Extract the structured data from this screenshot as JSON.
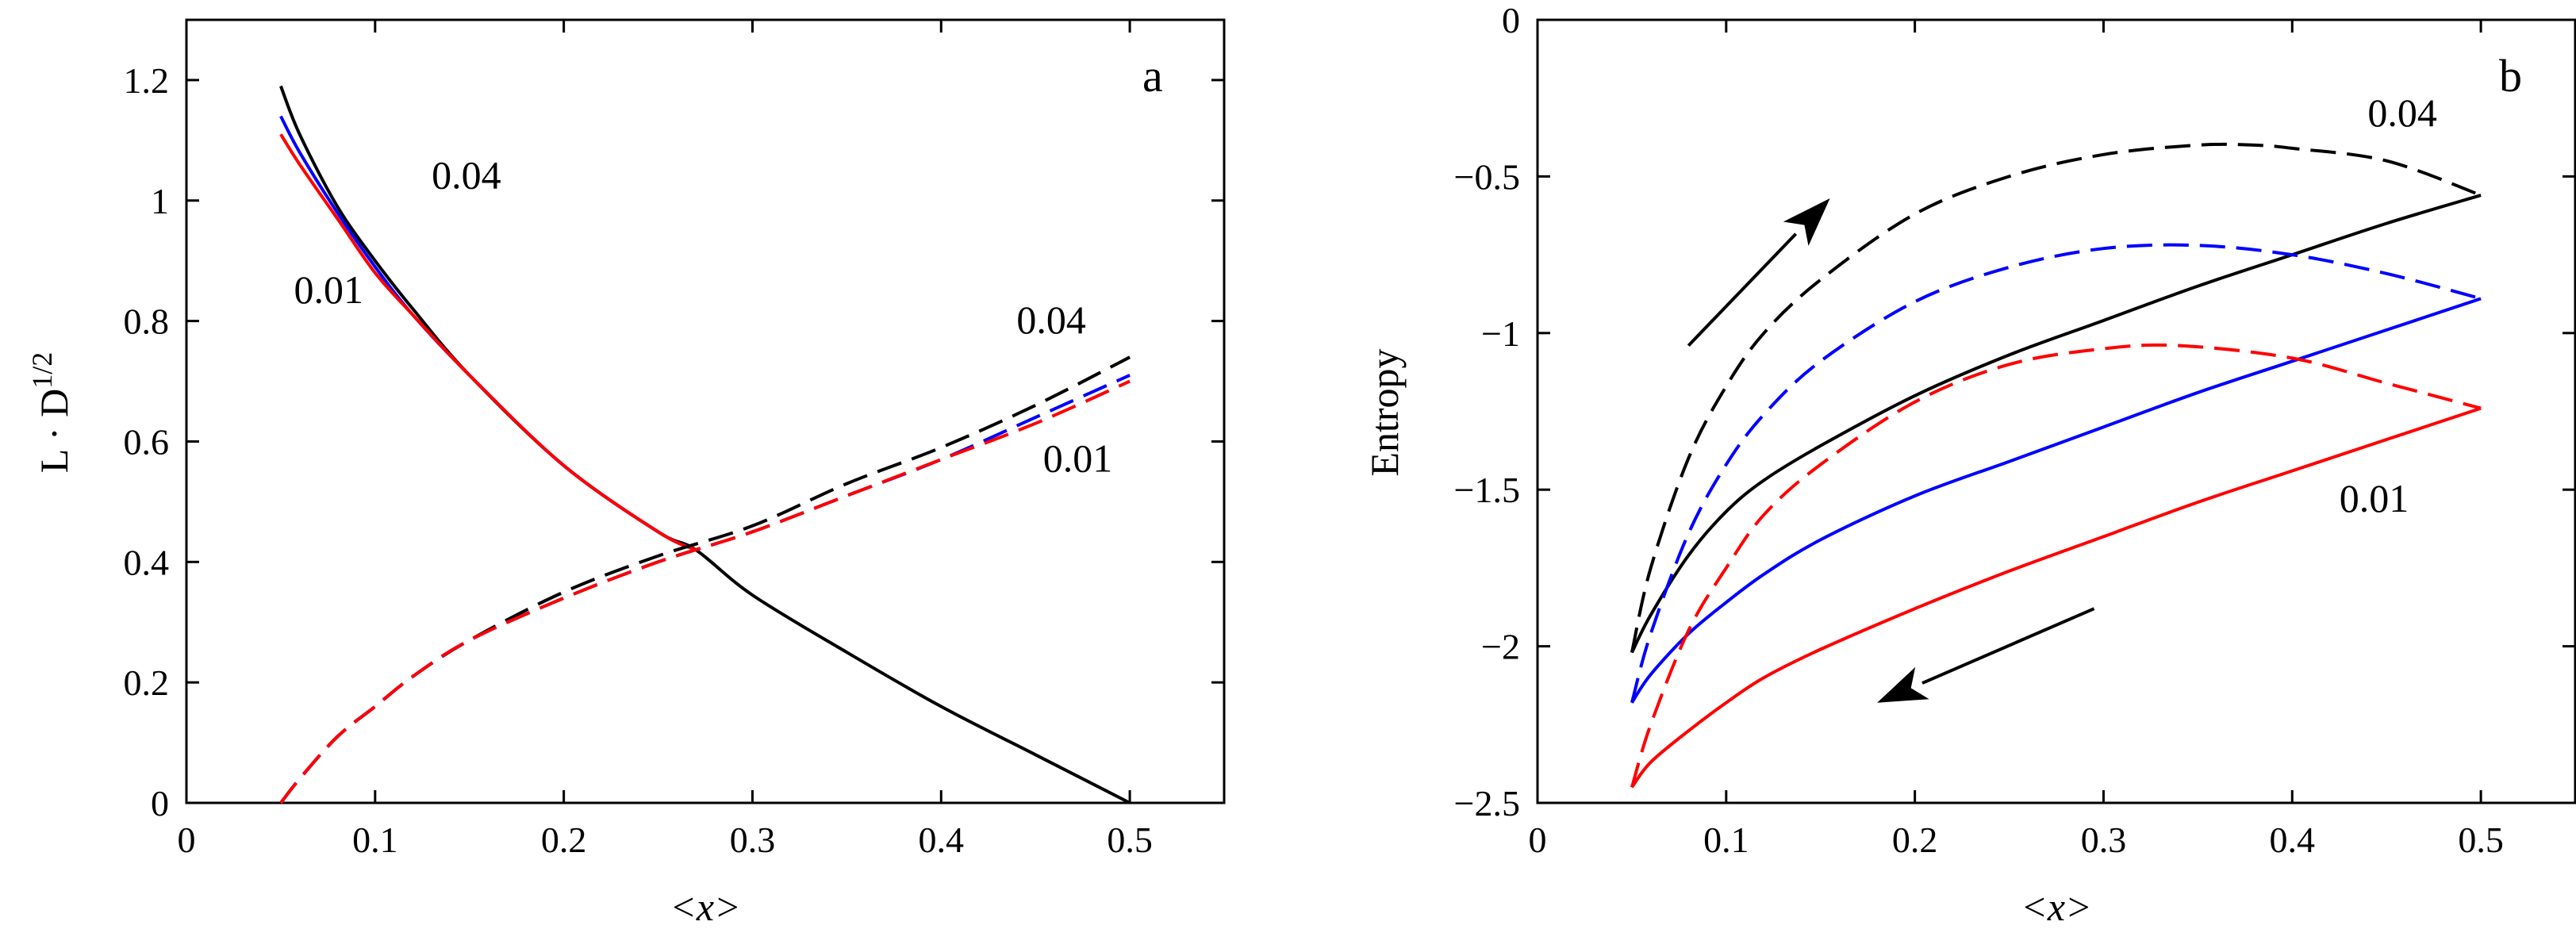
{
  "chart_data": [
    {
      "type": "line",
      "panel_label": "a",
      "xlabel": "<x>",
      "ylabel_main": "L · D",
      "ylabel_sup": "1/2",
      "xlim": [
        0,
        0.55
      ],
      "ylim": [
        0,
        1.3
      ],
      "xticks": [
        0,
        0.1,
        0.2,
        0.3,
        0.4,
        0.5
      ],
      "xtick_labels": [
        "0",
        "0.1",
        "0.2",
        "0.3",
        "0.4",
        "0.5"
      ],
      "yticks": [
        0,
        0.2,
        0.4,
        0.6,
        0.8,
        1,
        1.2
      ],
      "ytick_labels": [
        "0",
        "0.2",
        "0.4",
        "0.6",
        "0.8",
        "1",
        "1.2"
      ],
      "grid": false,
      "series": [
        {
          "color": "#000000",
          "style": "solid",
          "x": [
            0.05,
            0.06,
            0.08,
            0.1,
            0.12,
            0.15,
            0.2,
            0.25,
            0.27,
            0.3,
            0.35,
            0.4,
            0.45,
            0.5
          ],
          "y": [
            1.19,
            1.11,
            0.99,
            0.9,
            0.82,
            0.71,
            0.56,
            0.45,
            0.42,
            0.345,
            0.25,
            0.16,
            0.08,
            0.0
          ]
        },
        {
          "color": "#0000ff",
          "style": "solid",
          "x": [
            0.05,
            0.06,
            0.08,
            0.1,
            0.12,
            0.15,
            0.2,
            0.25,
            0.27
          ],
          "y": [
            1.14,
            1.08,
            0.98,
            0.89,
            0.81,
            0.71,
            0.56,
            0.45,
            0.42
          ]
        },
        {
          "color": "#ff0000",
          "style": "solid",
          "x": [
            0.05,
            0.06,
            0.08,
            0.1,
            0.12,
            0.15,
            0.2,
            0.25,
            0.27
          ],
          "y": [
            1.11,
            1.06,
            0.97,
            0.88,
            0.81,
            0.71,
            0.56,
            0.45,
            0.42
          ]
        },
        {
          "color": "#000000",
          "style": "dashed",
          "x": [
            0.05,
            0.06,
            0.08,
            0.1,
            0.12,
            0.15,
            0.2,
            0.25,
            0.3,
            0.35,
            0.4,
            0.45,
            0.5
          ],
          "y": [
            0.0,
            0.04,
            0.11,
            0.16,
            0.21,
            0.27,
            0.35,
            0.41,
            0.46,
            0.53,
            0.59,
            0.66,
            0.74
          ]
        },
        {
          "color": "#0000ff",
          "style": "dashed",
          "x": [
            0.05,
            0.06,
            0.08,
            0.1,
            0.12,
            0.15,
            0.2,
            0.25,
            0.3,
            0.35,
            0.4,
            0.45,
            0.5
          ],
          "y": [
            0.0,
            0.04,
            0.11,
            0.16,
            0.21,
            0.27,
            0.34,
            0.4,
            0.45,
            0.51,
            0.57,
            0.64,
            0.71
          ]
        },
        {
          "color": "#ff0000",
          "style": "dashed",
          "x": [
            0.05,
            0.06,
            0.08,
            0.1,
            0.12,
            0.15,
            0.2,
            0.25,
            0.3,
            0.35,
            0.4,
            0.45,
            0.5
          ],
          "y": [
            0.0,
            0.04,
            0.11,
            0.16,
            0.21,
            0.27,
            0.34,
            0.4,
            0.45,
            0.51,
            0.57,
            0.63,
            0.7
          ]
        }
      ],
      "annotations": [
        {
          "text": "0.04",
          "x": 0.13,
          "y": 1.02
        },
        {
          "text": "0.01",
          "x": 0.057,
          "y": 0.83
        },
        {
          "text": "0.04",
          "x": 0.44,
          "y": 0.78
        },
        {
          "text": "0.01",
          "x": 0.454,
          "y": 0.55
        }
      ]
    },
    {
      "type": "line",
      "panel_label": "b",
      "xlabel": "<x>",
      "ylabel": "Entropy",
      "xlim": [
        0,
        0.55
      ],
      "ylim": [
        -2.5,
        0
      ],
      "xticks": [
        0,
        0.1,
        0.2,
        0.3,
        0.4,
        0.5
      ],
      "xtick_labels": [
        "0",
        "0.1",
        "0.2",
        "0.3",
        "0.4",
        "0.5"
      ],
      "yticks": [
        -2.5,
        -2,
        -1.5,
        -1,
        -0.5,
        0
      ],
      "ytick_labels": [
        "−2.5",
        "−2",
        "−1.5",
        "−1",
        "−0.5",
        "0"
      ],
      "grid": false,
      "series": [
        {
          "color": "#000000",
          "style": "solid",
          "x": [
            0.05,
            0.06,
            0.08,
            0.1,
            0.12,
            0.15,
            0.2,
            0.25,
            0.3,
            0.35,
            0.4,
            0.45,
            0.5
          ],
          "y": [
            -2.02,
            -1.9,
            -1.71,
            -1.57,
            -1.47,
            -1.36,
            -1.2,
            -1.07,
            -0.96,
            -0.85,
            -0.75,
            -0.65,
            -0.56
          ]
        },
        {
          "color": "#0000ff",
          "style": "solid",
          "x": [
            0.05,
            0.06,
            0.08,
            0.1,
            0.12,
            0.15,
            0.2,
            0.25,
            0.3,
            0.35,
            0.4,
            0.45,
            0.5
          ],
          "y": [
            -2.18,
            -2.09,
            -1.96,
            -1.86,
            -1.77,
            -1.66,
            -1.52,
            -1.41,
            -1.3,
            -1.19,
            -1.09,
            -0.99,
            -0.89
          ]
        },
        {
          "color": "#ff0000",
          "style": "solid",
          "x": [
            0.05,
            0.06,
            0.08,
            0.1,
            0.12,
            0.15,
            0.2,
            0.25,
            0.3,
            0.35,
            0.4,
            0.45,
            0.5
          ],
          "y": [
            -2.45,
            -2.37,
            -2.27,
            -2.18,
            -2.1,
            -2.01,
            -1.88,
            -1.76,
            -1.65,
            -1.54,
            -1.44,
            -1.34,
            -1.24
          ]
        },
        {
          "color": "#000000",
          "style": "dashed",
          "x": [
            0.05,
            0.06,
            0.08,
            0.1,
            0.12,
            0.15,
            0.2,
            0.25,
            0.3,
            0.35,
            0.38,
            0.4,
            0.45,
            0.5
          ],
          "y": [
            -2.02,
            -1.75,
            -1.4,
            -1.17,
            -1.0,
            -0.83,
            -0.62,
            -0.5,
            -0.43,
            -0.4,
            -0.4,
            -0.41,
            -0.45,
            -0.56
          ]
        },
        {
          "color": "#0000ff",
          "style": "dashed",
          "x": [
            0.05,
            0.06,
            0.08,
            0.1,
            0.12,
            0.15,
            0.2,
            0.25,
            0.3,
            0.35,
            0.4,
            0.45,
            0.5
          ],
          "y": [
            -2.18,
            -1.96,
            -1.64,
            -1.42,
            -1.26,
            -1.09,
            -0.9,
            -0.79,
            -0.73,
            -0.72,
            -0.75,
            -0.81,
            -0.89
          ]
        },
        {
          "color": "#ff0000",
          "style": "dashed",
          "x": [
            0.05,
            0.06,
            0.08,
            0.1,
            0.12,
            0.15,
            0.2,
            0.25,
            0.3,
            0.34,
            0.4,
            0.45,
            0.5
          ],
          "y": [
            -2.45,
            -2.25,
            -1.95,
            -1.75,
            -1.58,
            -1.42,
            -1.22,
            -1.1,
            -1.05,
            -1.04,
            -1.08,
            -1.16,
            -1.24
          ]
        }
      ],
      "annotations": [
        {
          "text": "0.04",
          "x": 0.44,
          "y": -0.34
        },
        {
          "text": "0.01",
          "x": 0.425,
          "y": -1.57
        }
      ],
      "arrows": [
        {
          "from": [
            0.08,
            -1.04
          ],
          "to": [
            0.155,
            -0.57
          ]
        },
        {
          "from": [
            0.295,
            -1.88
          ],
          "to": [
            0.18,
            -2.18
          ]
        }
      ]
    }
  ]
}
